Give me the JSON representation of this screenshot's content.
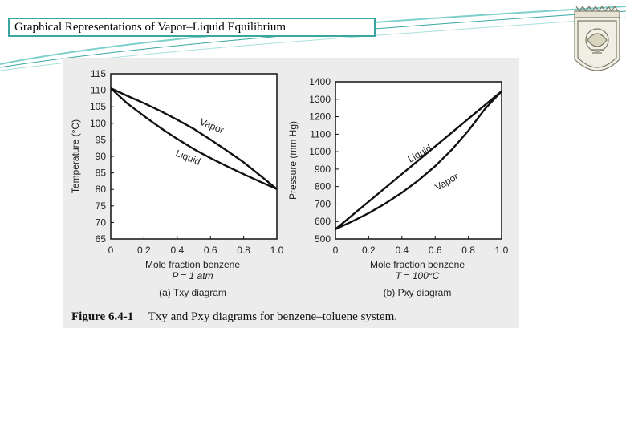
{
  "slide": {
    "title": "Graphical Representations of Vapor–Liquid Equilibrium",
    "accent": "#3aa6a0"
  },
  "figure": {
    "caption_number": "Figure 6.4-1",
    "caption_text": "Txy and Pxy diagrams for benzene–toluene system."
  },
  "chart_data": [
    {
      "type": "line",
      "xlabel": "Mole fraction benzene",
      "ylabel": "Temperature (°C)",
      "condition": "P = 1 atm",
      "panel_label": "(a) Txy diagram",
      "xlim": [
        0,
        1.0
      ],
      "ylim": [
        65,
        115
      ],
      "xticks": [
        "0",
        "0.2",
        "0.4",
        "0.6",
        "0.8",
        "1.0"
      ],
      "yticks": [
        "65",
        "70",
        "75",
        "80",
        "85",
        "90",
        "95",
        "100",
        "105",
        "110",
        "115"
      ],
      "series": [
        {
          "name": "Vapor",
          "x": [
            0,
            0.1,
            0.2,
            0.3,
            0.4,
            0.5,
            0.6,
            0.7,
            0.8,
            0.9,
            1.0
          ],
          "y": [
            110.6,
            108.3,
            106.1,
            103.7,
            101.1,
            98.3,
            95.1,
            91.7,
            88.2,
            84.2,
            80.1
          ]
        },
        {
          "name": "Liquid",
          "x": [
            0,
            0.1,
            0.2,
            0.3,
            0.4,
            0.5,
            0.6,
            0.7,
            0.8,
            0.9,
            1.0
          ],
          "y": [
            110.6,
            106.0,
            102.2,
            98.6,
            95.3,
            92.2,
            89.5,
            87.0,
            84.6,
            82.3,
            80.1
          ]
        }
      ]
    },
    {
      "type": "line",
      "xlabel": "Mole fraction benzene",
      "ylabel": "Pressure (mm Hg)",
      "condition": "T = 100°C",
      "panel_label": "(b) Pxy diagram",
      "xlim": [
        0,
        1.0
      ],
      "ylim": [
        500,
        1400
      ],
      "xticks": [
        "0",
        "0.2",
        "0.4",
        "0.6",
        "0.8",
        "1.0"
      ],
      "yticks": [
        "500",
        "600",
        "700",
        "800",
        "900",
        "1000",
        "1100",
        "1200",
        "1300",
        "1400"
      ],
      "series": [
        {
          "name": "Liquid",
          "x": [
            0,
            0.2,
            0.4,
            0.6,
            0.8,
            1.0
          ],
          "y": [
            556,
            714,
            872,
            1030,
            1188,
            1346
          ]
        },
        {
          "name": "Vapor",
          "x": [
            0,
            0.1,
            0.2,
            0.3,
            0.4,
            0.5,
            0.6,
            0.7,
            0.8,
            0.9,
            1.0
          ],
          "y": [
            556,
            600,
            648,
            703,
            765,
            836,
            917,
            1011,
            1120,
            1245,
            1346
          ]
        }
      ]
    }
  ]
}
